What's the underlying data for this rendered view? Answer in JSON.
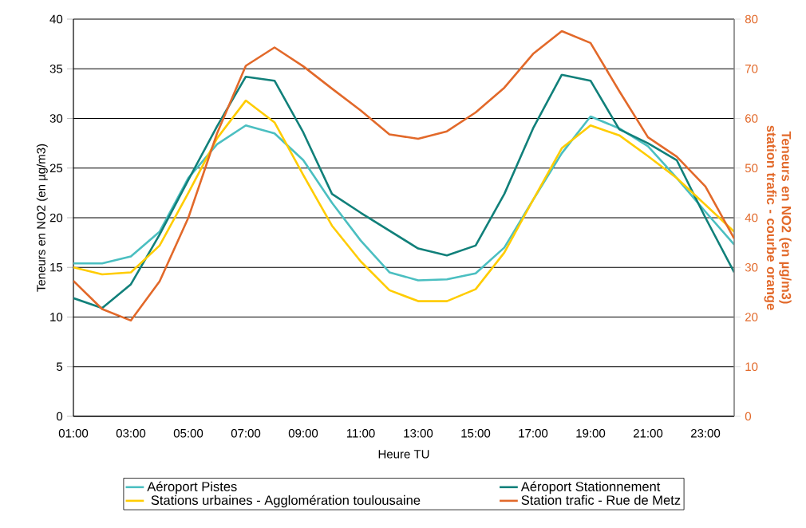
{
  "chart_data": {
    "type": "line",
    "xlabel": "Heure TU",
    "ylabel": "Teneurs en NO2 (en µg/m3)",
    "y2label": "Teneurs en NO2 (en µg/m3) station trafic - courbe orange",
    "x": [
      1,
      2,
      3,
      4,
      5,
      6,
      7,
      8,
      9,
      10,
      11,
      12,
      13,
      14,
      15,
      16,
      17,
      18,
      19,
      20,
      21,
      22,
      23,
      24
    ],
    "xlim": [
      1,
      24
    ],
    "xticks": [
      {
        "value": 1,
        "label": "01:00"
      },
      {
        "value": 3,
        "label": "03:00"
      },
      {
        "value": 5,
        "label": "05:00"
      },
      {
        "value": 7,
        "label": "07:00"
      },
      {
        "value": 9,
        "label": "09:00"
      },
      {
        "value": 11,
        "label": "11:00"
      },
      {
        "value": 13,
        "label": "13:00"
      },
      {
        "value": 15,
        "label": "15:00"
      },
      {
        "value": 17,
        "label": "17:00"
      },
      {
        "value": 19,
        "label": "19:00"
      },
      {
        "value": 21,
        "label": "21:00"
      },
      {
        "value": 23,
        "label": "23:00"
      }
    ],
    "ylim": [
      0,
      40
    ],
    "yticks": [
      0,
      5,
      10,
      15,
      20,
      25,
      30,
      35,
      40
    ],
    "y2lim": [
      0,
      80
    ],
    "y2ticks": [
      0,
      10,
      20,
      30,
      40,
      50,
      60,
      70,
      80
    ],
    "grid": "y",
    "legend": "bottom",
    "series": [
      {
        "name": "Aéroport Pistes",
        "color": "#4bbfc1",
        "values": [
          15.4,
          15.4,
          16.1,
          18.6,
          24.0,
          27.4,
          29.3,
          28.5,
          25.8,
          21.5,
          17.7,
          14.5,
          13.7,
          13.8,
          14.4,
          17.0,
          21.8,
          26.5,
          30.2,
          29.0,
          27.2,
          24.0,
          20.6,
          17.3
        ]
      },
      {
        "name": "Aéroport Stationnement",
        "color": "#11807a",
        "values": [
          11.9,
          10.9,
          13.3,
          18.3,
          23.8,
          29.2,
          34.2,
          33.8,
          28.6,
          22.4,
          20.5,
          18.7,
          16.9,
          16.2,
          17.2,
          22.4,
          29.0,
          34.4,
          33.8,
          28.9,
          27.5,
          25.8,
          20.0,
          14.5
        ]
      },
      {
        "name": " Stations urbaines - Agglomération toulousaine",
        "color": "#ffcc00",
        "values": [
          15.0,
          14.3,
          14.5,
          17.2,
          22.5,
          28.0,
          31.8,
          29.6,
          24.3,
          19.2,
          15.6,
          12.7,
          11.6,
          11.6,
          12.8,
          16.5,
          21.8,
          27.0,
          29.3,
          28.3,
          26.2,
          24.0,
          21.3,
          18.6
        ]
      },
      {
        "name": "Station trafic - Rue de Metz",
        "color": "#e2692a",
        "axis": "y2",
        "values": [
          27.3,
          21.6,
          19.3,
          27.2,
          40.0,
          57.0,
          70.6,
          74.3,
          70.5,
          66.0,
          61.6,
          56.8,
          55.9,
          57.4,
          61.2,
          66.2,
          73.0,
          77.6,
          75.2,
          65.5,
          56.2,
          52.3,
          46.3,
          35.8
        ]
      }
    ]
  }
}
